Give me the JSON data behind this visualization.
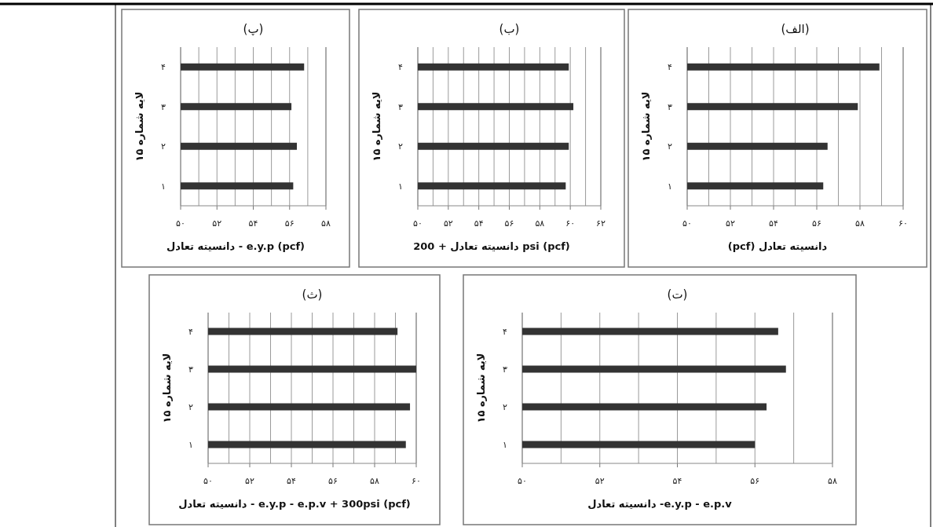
{
  "chart_data": [
    {
      "type": "bar",
      "orientation": "horizontal",
      "title": "(الف)",
      "xlabel": "(pcf) دانسیته تعادل",
      "ylabel": "لایه شماره ۱۵",
      "categories": [
        "۴",
        "۳",
        "۲",
        "۱"
      ],
      "values": [
        58.9,
        57.9,
        56.5,
        56.3
      ],
      "color": "#333333",
      "xlim": [
        50,
        60
      ],
      "xticks": [
        {
          "value": 50,
          "label": "۵۰"
        },
        {
          "value": 51,
          "label": null
        },
        {
          "value": 52,
          "label": "۵۲"
        },
        {
          "value": 53,
          "label": null
        },
        {
          "value": 54,
          "label": "۵۴"
        },
        {
          "value": 55,
          "label": null
        },
        {
          "value": 56,
          "label": "۵۶"
        },
        {
          "value": 57,
          "label": null
        },
        {
          "value": 58,
          "label": "۵۸"
        },
        {
          "value": 59,
          "label": null
        },
        {
          "value": 60,
          "label": "۶۰"
        }
      ],
      "grid": "x"
    },
    {
      "type": "bar",
      "orientation": "horizontal",
      "title": "(ب)",
      "xlabel": "دانسیته تعادل + 200 psi (pcf)",
      "ylabel": "لایه شماره ۱۵",
      "categories": [
        "۴",
        "۳",
        "۲",
        "۱"
      ],
      "values": [
        59.9,
        60.2,
        59.9,
        59.7
      ],
      "color": "#333333",
      "xlim": [
        50,
        62
      ],
      "xticks": [
        {
          "value": 50,
          "label": "۵۰"
        },
        {
          "value": 51,
          "label": null
        },
        {
          "value": 52,
          "label": "۵۲"
        },
        {
          "value": 53,
          "label": null
        },
        {
          "value": 54,
          "label": "۵۴"
        },
        {
          "value": 55,
          "label": null
        },
        {
          "value": 56,
          "label": "۵۶"
        },
        {
          "value": 57,
          "label": null
        },
        {
          "value": 58,
          "label": "۵۸"
        },
        {
          "value": 59,
          "label": null
        },
        {
          "value": 60,
          "label": "۶۰"
        },
        {
          "value": 61,
          "label": null
        },
        {
          "value": 62,
          "label": "۶۲"
        }
      ],
      "grid": "x"
    },
    {
      "type": "bar",
      "orientation": "horizontal",
      "title": "(پ)",
      "xlabel": "دانسیته تعادل - e.y.p (pcf)",
      "ylabel": "لایه شماره ۱۵",
      "categories": [
        "۴",
        "۳",
        "۲",
        "۱"
      ],
      "values": [
        56.8,
        56.1,
        56.4,
        56.2
      ],
      "color": "#333333",
      "xlim": [
        50,
        58
      ],
      "xticks": [
        {
          "value": 50,
          "label": "۵۰"
        },
        {
          "value": 51,
          "label": null
        },
        {
          "value": 52,
          "label": "۵۲"
        },
        {
          "value": 53,
          "label": null
        },
        {
          "value": 54,
          "label": "۵۴"
        },
        {
          "value": 55,
          "label": null
        },
        {
          "value": 56,
          "label": "۵۶"
        },
        {
          "value": 57,
          "label": null
        },
        {
          "value": 58,
          "label": "۵۸"
        }
      ],
      "grid": "x"
    },
    {
      "type": "bar",
      "orientation": "horizontal",
      "title": "(ت)",
      "xlabel": "دانسیته تعادل -e.y.p - e.p.v",
      "ylabel": "لایه شماره ۱۵",
      "categories": [
        "۴",
        "۳",
        "۲",
        "۱"
      ],
      "values": [
        56.6,
        56.8,
        56.3,
        56.0
      ],
      "color": "#333333",
      "xlim": [
        50,
        58
      ],
      "xticks": [
        {
          "value": 50,
          "label": "۵۰"
        },
        {
          "value": 51,
          "label": null
        },
        {
          "value": 52,
          "label": "۵۲"
        },
        {
          "value": 53,
          "label": null
        },
        {
          "value": 54,
          "label": "۵۴"
        },
        {
          "value": 55,
          "label": null
        },
        {
          "value": 56,
          "label": "۵۶"
        },
        {
          "value": 57,
          "label": null
        },
        {
          "value": 58,
          "label": "۵۸"
        }
      ],
      "grid": "x"
    },
    {
      "type": "bar",
      "orientation": "horizontal",
      "title": "(ث)",
      "xlabel": "دانسیته تعادل - e.y.p - e.p.v + 300psi (pcf)",
      "ylabel": "لایه شماره ۱۵",
      "categories": [
        "۴",
        "۳",
        "۲",
        "۱"
      ],
      "values": [
        59.1,
        60.0,
        59.7,
        59.5
      ],
      "color": "#333333",
      "xlim": [
        50,
        60
      ],
      "xticks": [
        {
          "value": 50,
          "label": "۵۰"
        },
        {
          "value": 51,
          "label": null
        },
        {
          "value": 52,
          "label": "۵۲"
        },
        {
          "value": 53,
          "label": null
        },
        {
          "value": 54,
          "label": "۵۴"
        },
        {
          "value": 55,
          "label": null
        },
        {
          "value": 56,
          "label": "۵۶"
        },
        {
          "value": 57,
          "label": null
        },
        {
          "value": 58,
          "label": "۵۸"
        },
        {
          "value": 59,
          "label": null
        },
        {
          "value": 60,
          "label": "۶۰"
        }
      ],
      "grid": "x"
    }
  ]
}
